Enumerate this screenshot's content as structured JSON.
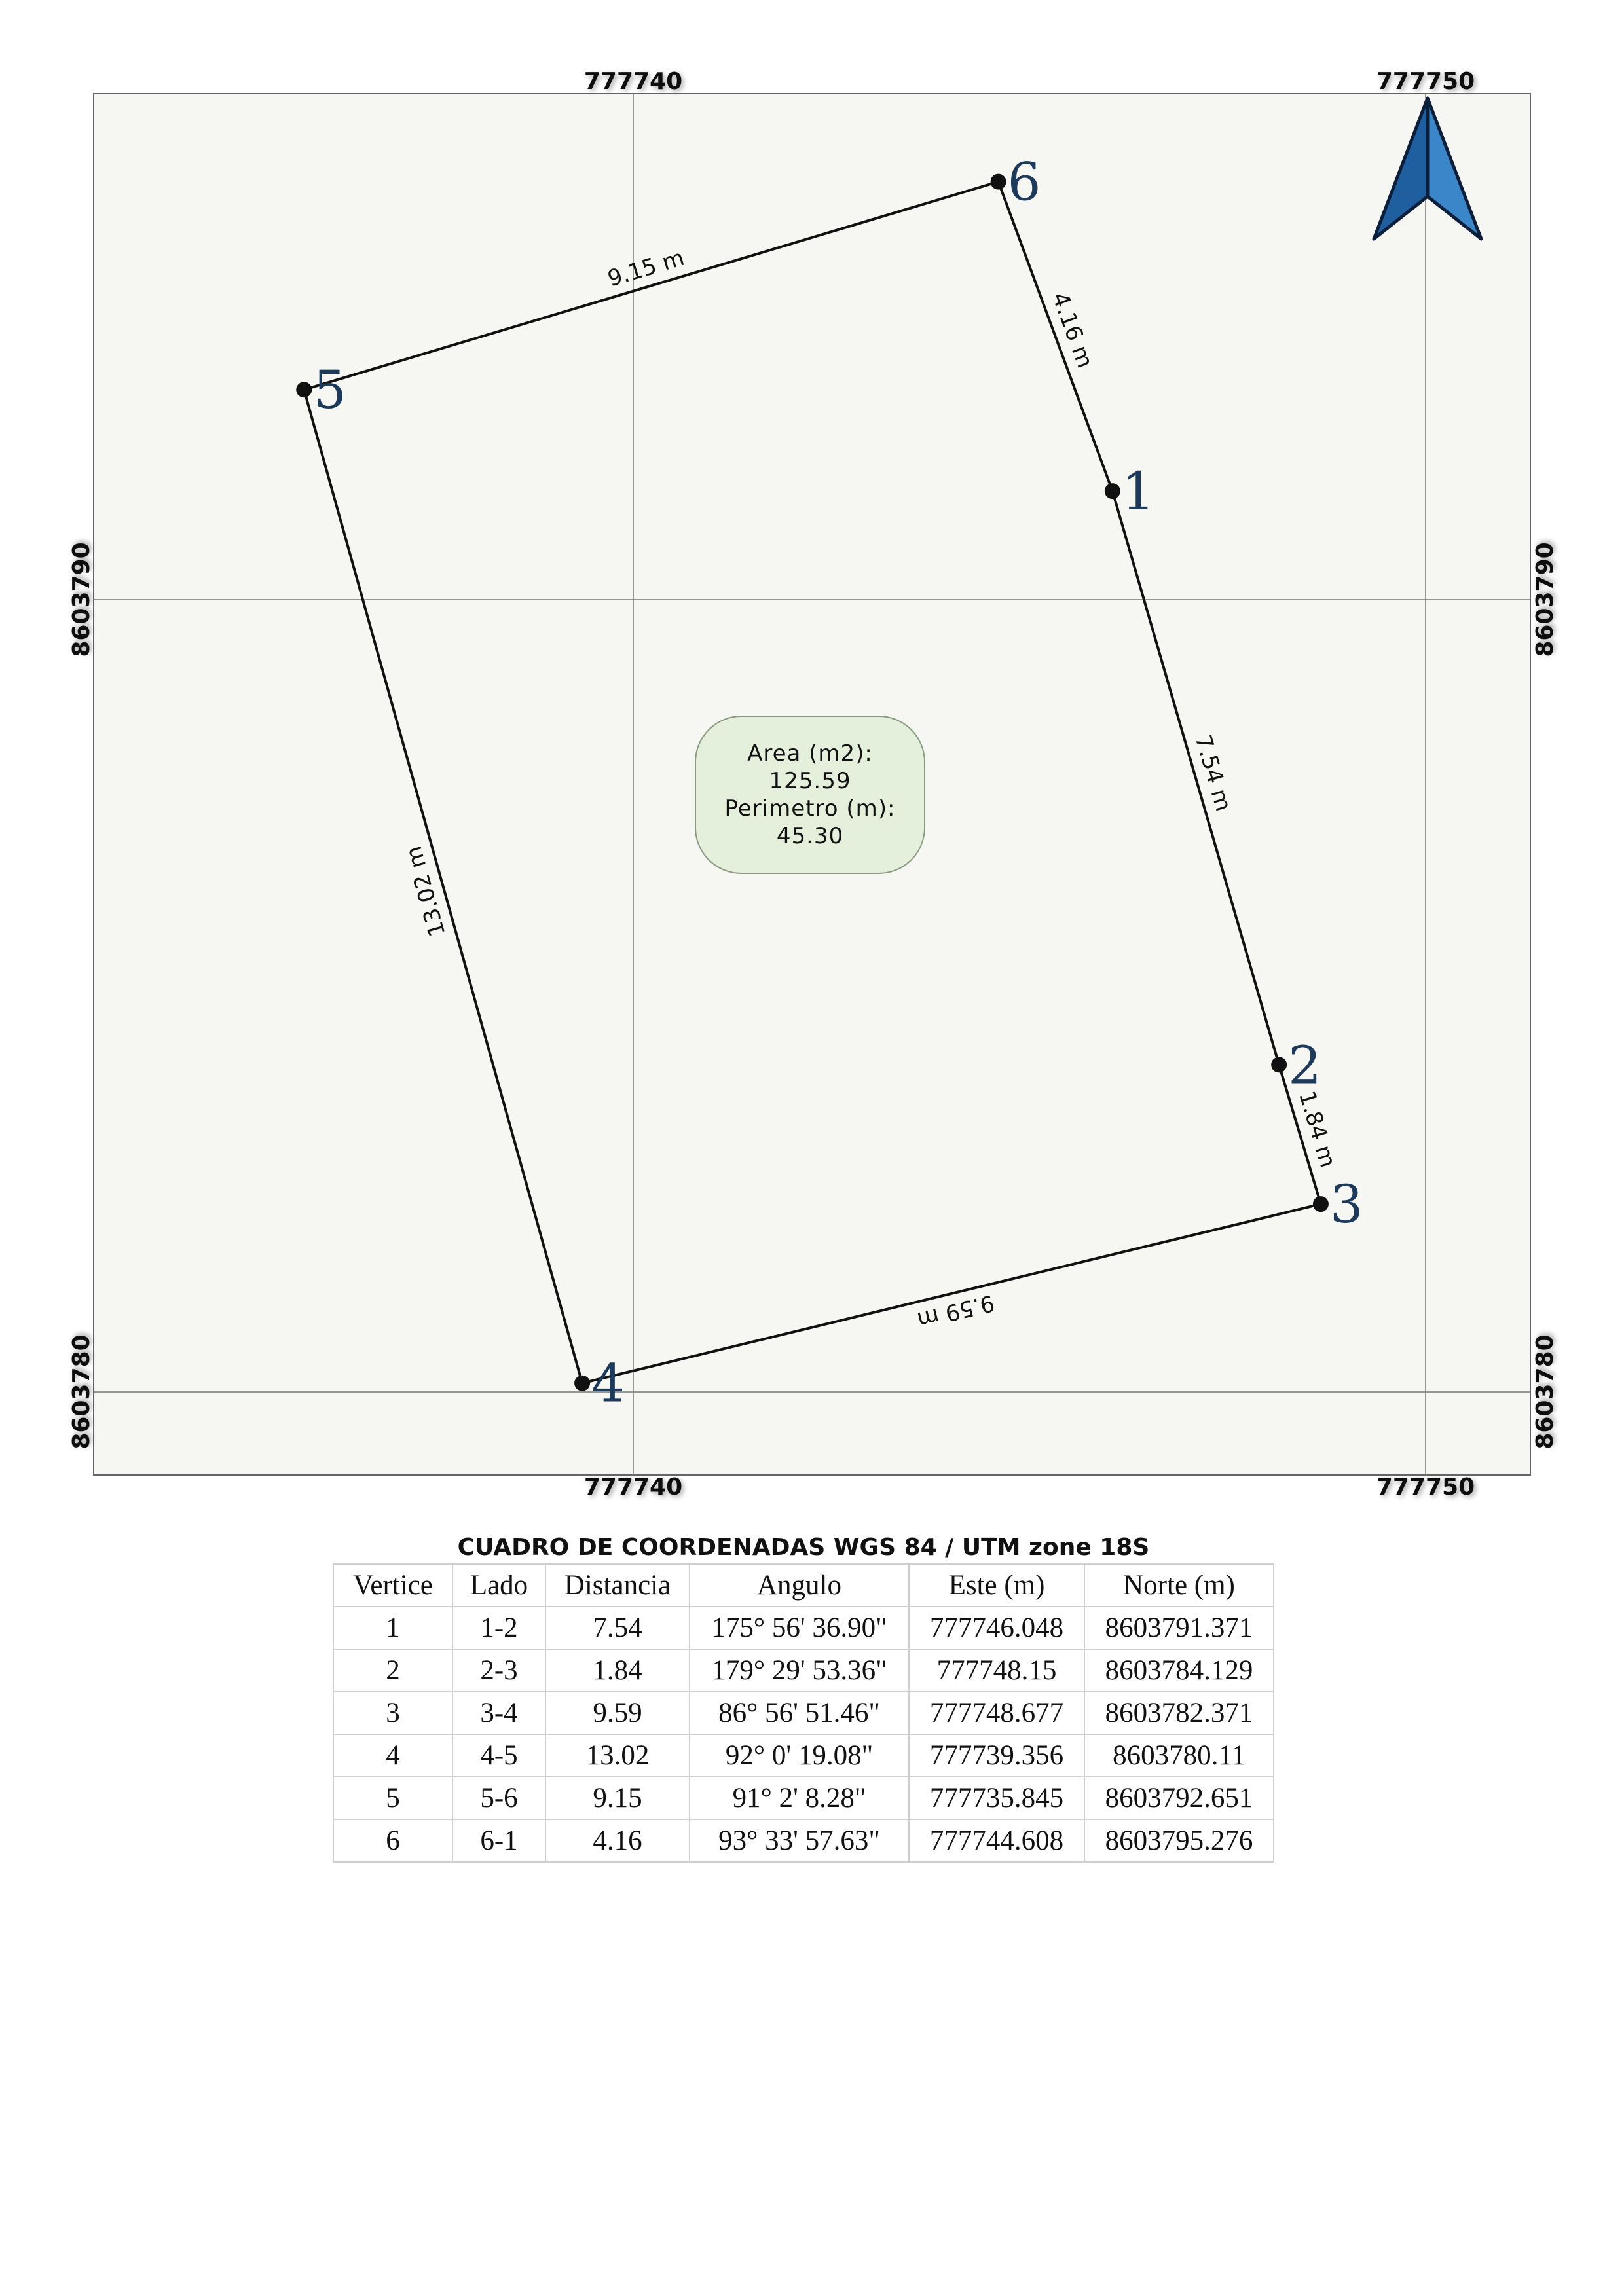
{
  "map": {
    "grid_x_labels": [
      "777740",
      "777750"
    ],
    "grid_y_labels": [
      "8603790",
      "8603780"
    ],
    "vertices": [
      {
        "id": "1",
        "este": 777746.048,
        "norte": 8603791.371
      },
      {
        "id": "2",
        "este": 777748.15,
        "norte": 8603784.129
      },
      {
        "id": "3",
        "este": 777748.677,
        "norte": 8603782.371
      },
      {
        "id": "4",
        "este": 777739.356,
        "norte": 8603780.11
      },
      {
        "id": "5",
        "este": 777735.845,
        "norte": 8603792.651
      },
      {
        "id": "6",
        "este": 777744.608,
        "norte": 8603795.276
      }
    ],
    "segment_labels": [
      "7.54 m",
      "1.84 m",
      "9.59 m",
      "13.02 m",
      "9.15 m",
      "4.16 m"
    ],
    "info_box": {
      "area_label": "Area (m2):",
      "area_value": "125.59",
      "perimeter_label": "Perimetro (m):",
      "perimeter_value": "45.30"
    },
    "colors": {
      "frame_fill": "#f6f6f3",
      "polygon_line": "#111111",
      "vertex_label": "#1e3a5a",
      "info_box_fill": "#e4efdc",
      "north_arrow": "#2e74b6"
    },
    "north_arrow_icon": "north-arrow-icon"
  },
  "table": {
    "title": "CUADRO DE COORDENADAS WGS 84 / UTM zone 18S",
    "headers": [
      "Vertice",
      "Lado",
      "Distancia",
      "Angulo",
      "Este (m)",
      "Norte (m)"
    ],
    "rows": [
      [
        "1",
        "1-2",
        "7.54",
        "175° 56' 36.90\"",
        "777746.048",
        "8603791.371"
      ],
      [
        "2",
        "2-3",
        "1.84",
        "179° 29' 53.36\"",
        "777748.15",
        "8603784.129"
      ],
      [
        "3",
        "3-4",
        "9.59",
        "86° 56' 51.46\"",
        "777748.677",
        "8603782.371"
      ],
      [
        "4",
        "4-5",
        "13.02",
        "92° 0' 19.08\"",
        "777739.356",
        "8603780.11"
      ],
      [
        "5",
        "5-6",
        "9.15",
        "91° 2' 8.28\"",
        "777735.845",
        "8603792.651"
      ],
      [
        "6",
        "6-1",
        "4.16",
        "93° 33' 57.63\"",
        "777744.608",
        "8603795.276"
      ]
    ]
  }
}
